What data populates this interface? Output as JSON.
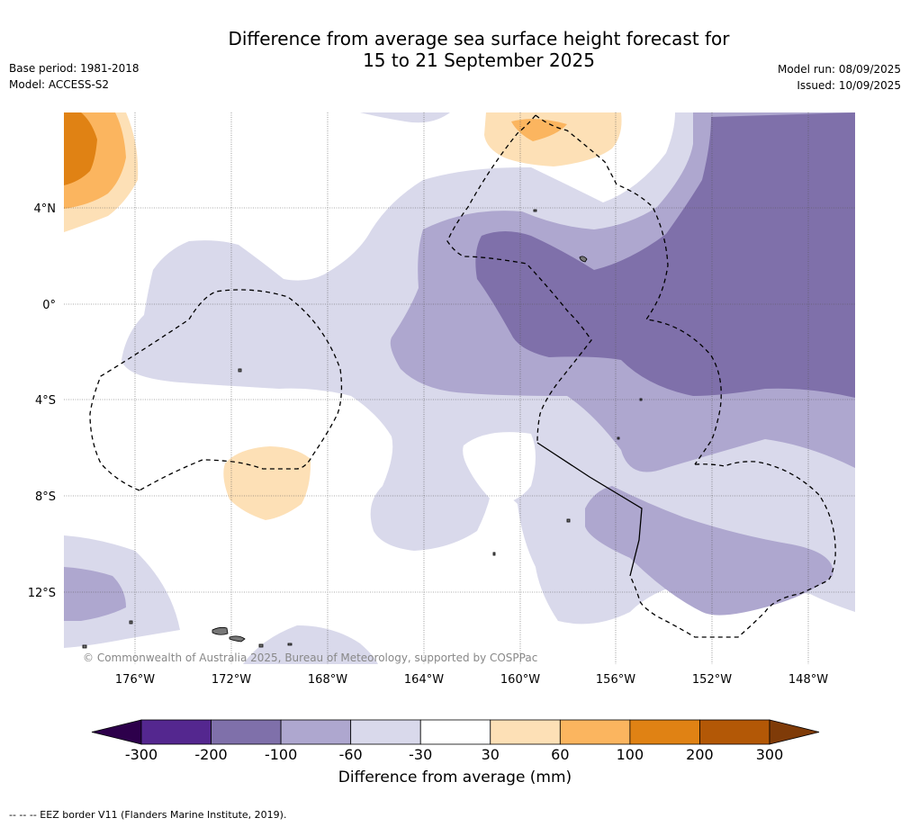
{
  "title_line1": "Difference from average sea surface height forecast for",
  "title_line2": "15 to 21 September 2025",
  "base_period": "Base period: 1981-2018",
  "model": "Model: ACCESS-S2",
  "model_run": "Model run: 08/09/2025",
  "issued": "Issued: 10/09/2025",
  "map": {
    "lat_labels": [
      "4°N",
      "0°",
      "4°S",
      "8°S",
      "12°S"
    ],
    "lon_labels": [
      "176°W",
      "172°W",
      "168°W",
      "164°W",
      "160°W",
      "156°W",
      "152°W",
      "148°W"
    ],
    "credit": "© Commonwealth of Australia 2025, Bureau of Meteorology, supported by COSPPac"
  },
  "colorbar": {
    "ticks": [
      "-300",
      "-200",
      "-100",
      "-60",
      "-30",
      "30",
      "60",
      "100",
      "200",
      "300"
    ],
    "colors": [
      "#54278f",
      "#7f70aa",
      "#aea7cf",
      "#d9d9eb",
      "#ffffff",
      "#fde0b6",
      "#fbb55f",
      "#e08214",
      "#b35806"
    ],
    "extend_low_color": "#2d004b",
    "extend_high_color": "#7f3b08",
    "label": "Difference from average (mm)"
  },
  "footer": "--  --  -- EEZ border V11 (Flanders Marine Institute, 2019)."
}
